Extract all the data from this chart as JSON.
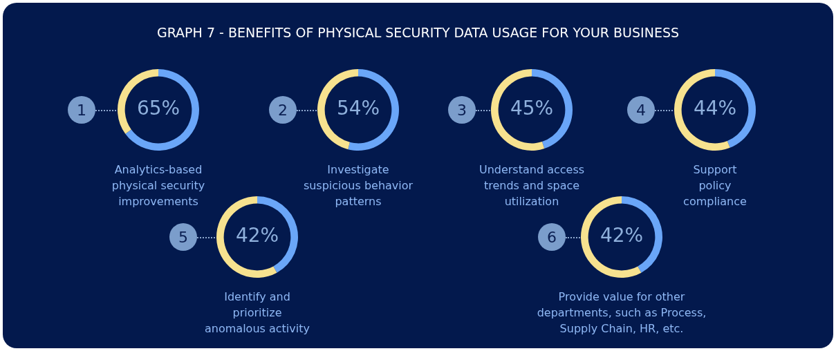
{
  "chart_data": [
    {
      "type": "donut",
      "title": "GRAPH  7 - BENEFITS OF PHYSICAL SECURITY DATA USAGE FOR YOUR BUSINESS",
      "xlabel": "Analytics-based physical security improvements",
      "categories": [
        null,
        null
      ],
      "values": [
        65,
        35
      ],
      "colors": [
        "#6aa6f8",
        "#f7e28f"
      ],
      "value_labels": [
        "65%",
        null
      ],
      "annotations": [
        "1"
      ]
    },
    {
      "type": "donut",
      "xlabel": "Investigate suspicious behavior patterns",
      "categories": [
        null,
        null
      ],
      "values": [
        54,
        46
      ],
      "colors": [
        "#6aa6f8",
        "#f7e28f"
      ],
      "value_labels": [
        "54%",
        null
      ],
      "annotations": [
        "2"
      ]
    },
    {
      "type": "donut",
      "xlabel": "Understand access trends and space utilization",
      "categories": [
        null,
        null
      ],
      "values": [
        45,
        55
      ],
      "colors": [
        "#6aa6f8",
        "#f7e28f"
      ],
      "value_labels": [
        "45%",
        null
      ],
      "annotations": [
        "3"
      ]
    },
    {
      "type": "donut",
      "xlabel": "Support policy compliance",
      "categories": [
        null,
        null
      ],
      "values": [
        44,
        56
      ],
      "colors": [
        "#6aa6f8",
        "#f7e28f"
      ],
      "value_labels": [
        "44%",
        null
      ],
      "annotations": [
        "4"
      ]
    },
    {
      "type": "donut",
      "xlabel": "Identify and prioritize anomalous activity",
      "categories": [
        null,
        null
      ],
      "values": [
        42,
        58
      ],
      "colors": [
        "#6aa6f8",
        "#f7e28f"
      ],
      "value_labels": [
        "42%",
        null
      ],
      "annotations": [
        "5"
      ]
    },
    {
      "type": "donut",
      "xlabel": "Provide value for other departments, such as Process, Supply Chain, HR, etc.",
      "categories": [
        null,
        null
      ],
      "values": [
        42,
        58
      ],
      "colors": [
        "#6aa6f8",
        "#f7e28f"
      ],
      "value_labels": [
        "42%",
        null
      ],
      "annotations": [
        "6"
      ]
    }
  ]
}
